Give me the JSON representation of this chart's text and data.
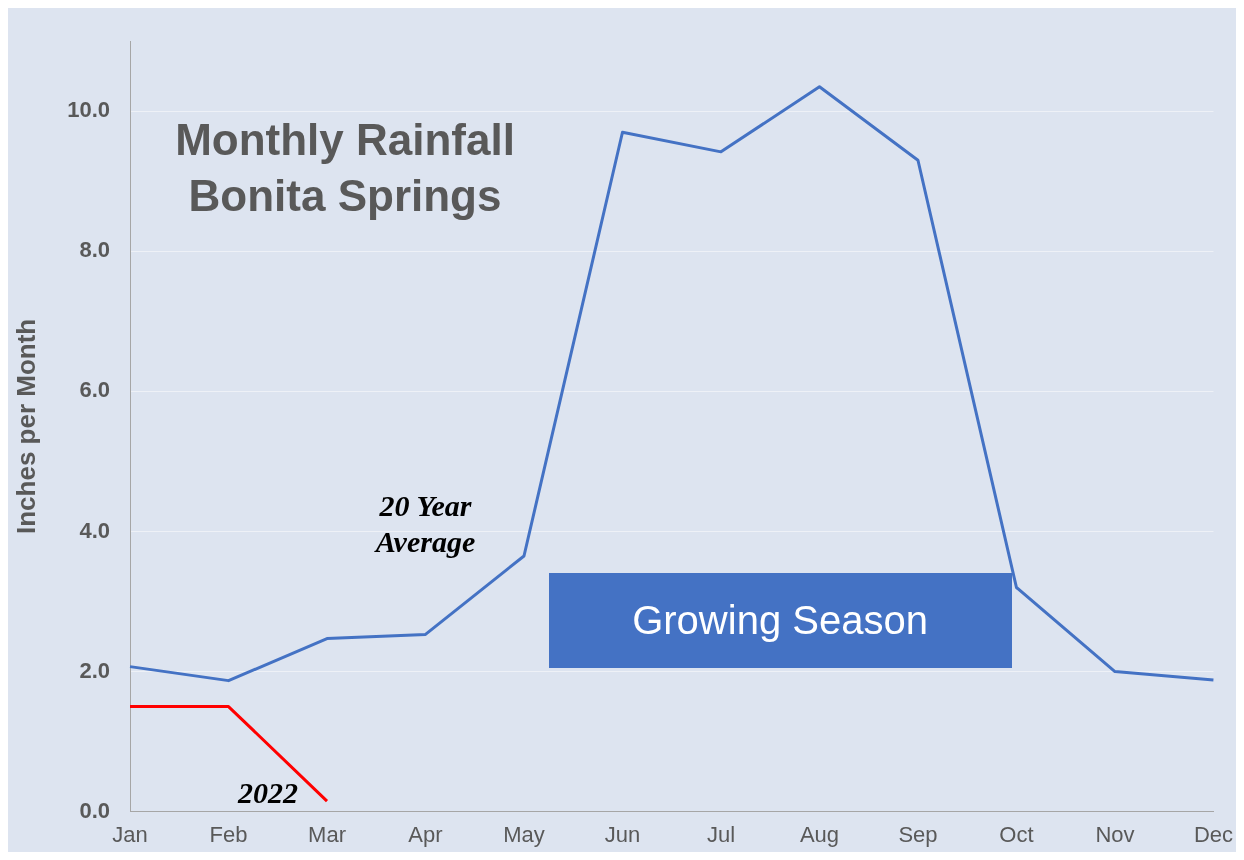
{
  "chart_data": {
    "type": "line",
    "title": "Monthly Rainfall Bonita Springs",
    "ylabel": "Inches per Month",
    "categories": [
      "Jan",
      "Feb",
      "Mar",
      "Apr",
      "May",
      "Jun",
      "Jul",
      "Aug",
      "Sep",
      "Oct",
      "Nov",
      "Dec"
    ],
    "series": [
      {
        "name": "20 Year Average",
        "color": "#4472c4",
        "values": [
          2.07,
          1.87,
          2.47,
          2.53,
          3.65,
          9.7,
          9.42,
          10.35,
          9.3,
          3.2,
          2.0,
          1.88
        ]
      },
      {
        "name": "2022",
        "color": "#ff0000",
        "values": [
          1.5,
          1.5,
          0.15,
          null,
          null,
          null,
          null,
          null,
          null,
          null,
          null,
          null
        ]
      }
    ],
    "ylim": [
      0,
      11
    ],
    "yticks": [
      {
        "value": 0,
        "label": "0.0"
      },
      {
        "value": 2,
        "label": "2.0"
      },
      {
        "value": 4,
        "label": "4.0"
      },
      {
        "value": 6,
        "label": "6.0"
      },
      {
        "value": 8,
        "label": "8.0"
      },
      {
        "value": 10,
        "label": "10.0"
      }
    ],
    "annotations": [
      "Growing Season"
    ],
    "grid": "y",
    "legend": false,
    "marker": "none",
    "line_style": "solid"
  }
}
